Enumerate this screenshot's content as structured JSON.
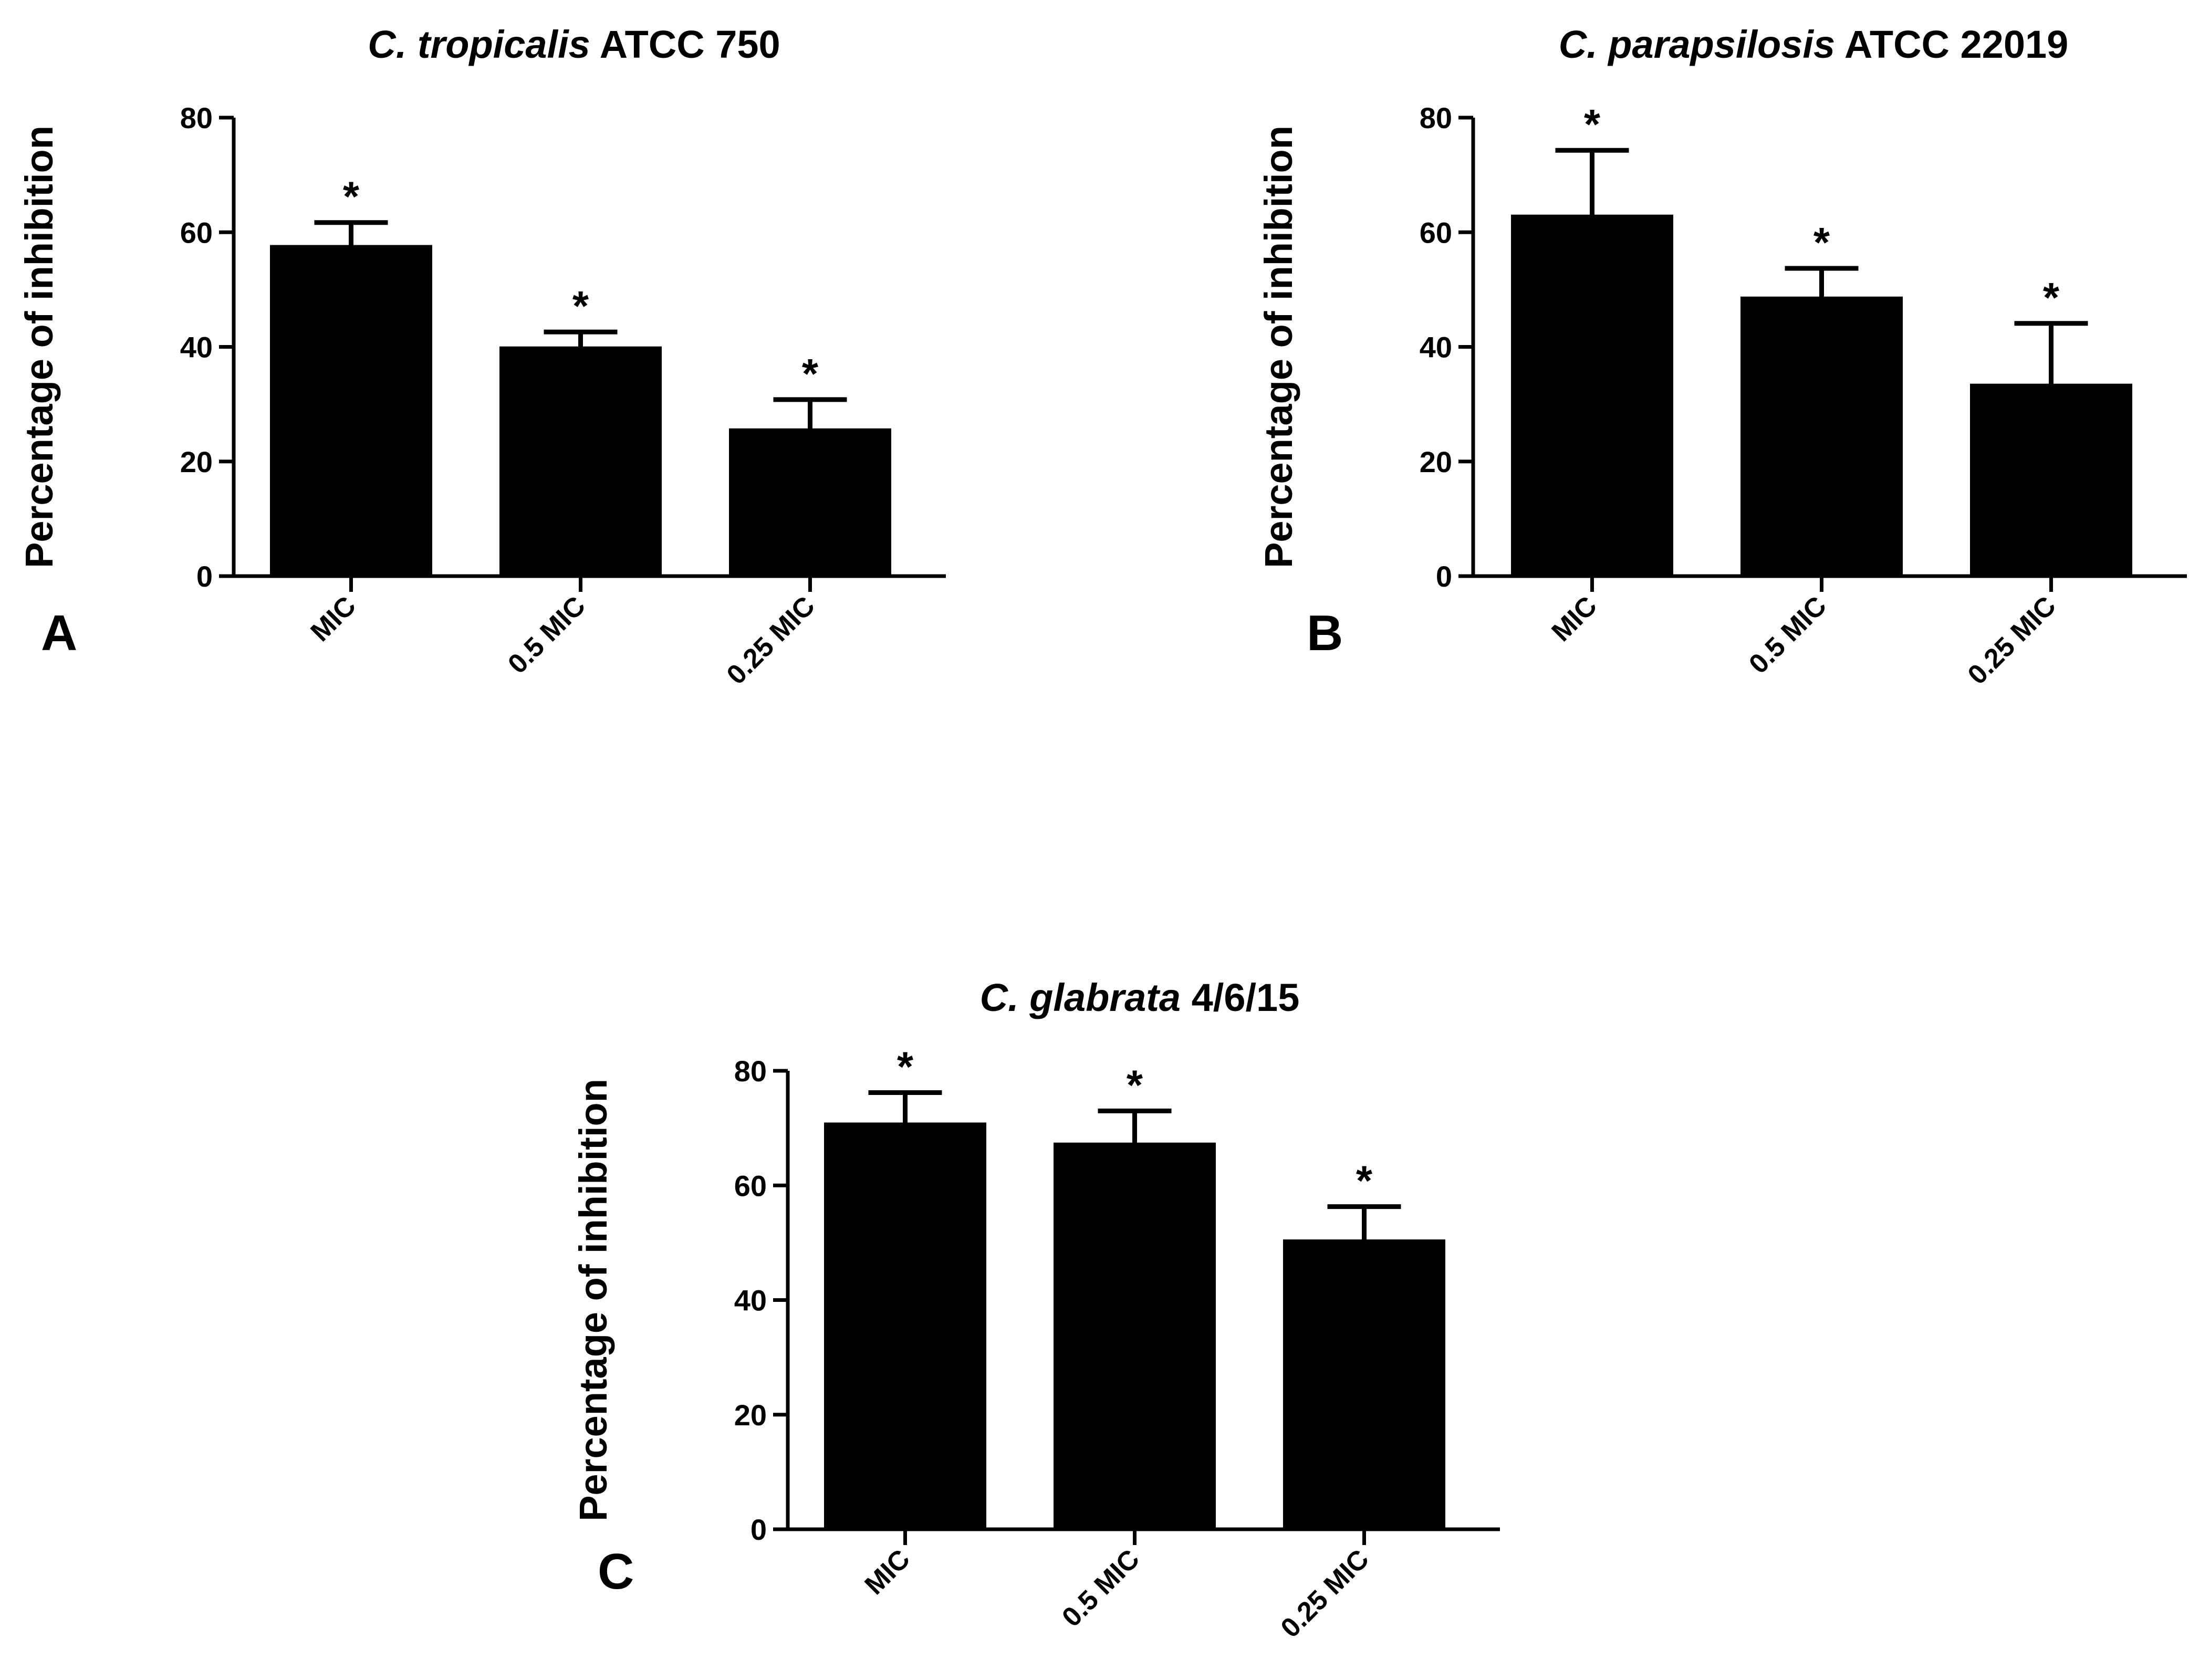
{
  "chart_data": [
    {
      "type": "bar",
      "panel_label": "A",
      "title_italic": "C. tropicalis",
      "title_rest": " ATCC 750",
      "ylabel": "Percentage of inhibition",
      "xlabel": "",
      "ylim": [
        0,
        80
      ],
      "yticks": [
        "0",
        "20",
        "40",
        "60",
        "80"
      ],
      "categories": [
        "MIC",
        "0.5 MIC",
        "0.25 MIC"
      ],
      "values": [
        57.5,
        39.8,
        25.5
      ],
      "errors": [
        4.2,
        2.8,
        5.3
      ],
      "significance": [
        "*",
        "*",
        "*"
      ],
      "bar_color": "#000000",
      "grid": false
    },
    {
      "type": "bar",
      "panel_label": "B",
      "title_italic": "C. parapsilosis",
      "title_rest": " ATCC 22019",
      "ylabel": "Percentage of inhibition",
      "xlabel": "",
      "ylim": [
        0,
        80
      ],
      "yticks": [
        "0",
        "20",
        "40",
        "60",
        "80"
      ],
      "categories": [
        "MIC",
        "0.5 MIC",
        "0.25 MIC"
      ],
      "values": [
        62.8,
        48.5,
        33.3
      ],
      "errors": [
        11.5,
        5.2,
        10.8
      ],
      "significance": [
        "*",
        "*",
        "*"
      ],
      "bar_color": "#000000",
      "grid": false
    },
    {
      "type": "bar",
      "panel_label": "C",
      "title_italic": "C. glabrata",
      "title_rest": " 4/6/15",
      "ylabel": "Percentage of inhibition",
      "xlabel": "",
      "ylim": [
        0,
        80
      ],
      "yticks": [
        "0",
        "20",
        "40",
        "60",
        "80"
      ],
      "categories": [
        "MIC",
        "0.5 MIC",
        "0.25 MIC"
      ],
      "values": [
        70.7,
        67.2,
        50.3
      ],
      "errors": [
        5.5,
        5.8,
        6.0
      ],
      "significance": [
        "*",
        "*",
        "*"
      ],
      "bar_color": "#000000",
      "grid": false
    }
  ]
}
